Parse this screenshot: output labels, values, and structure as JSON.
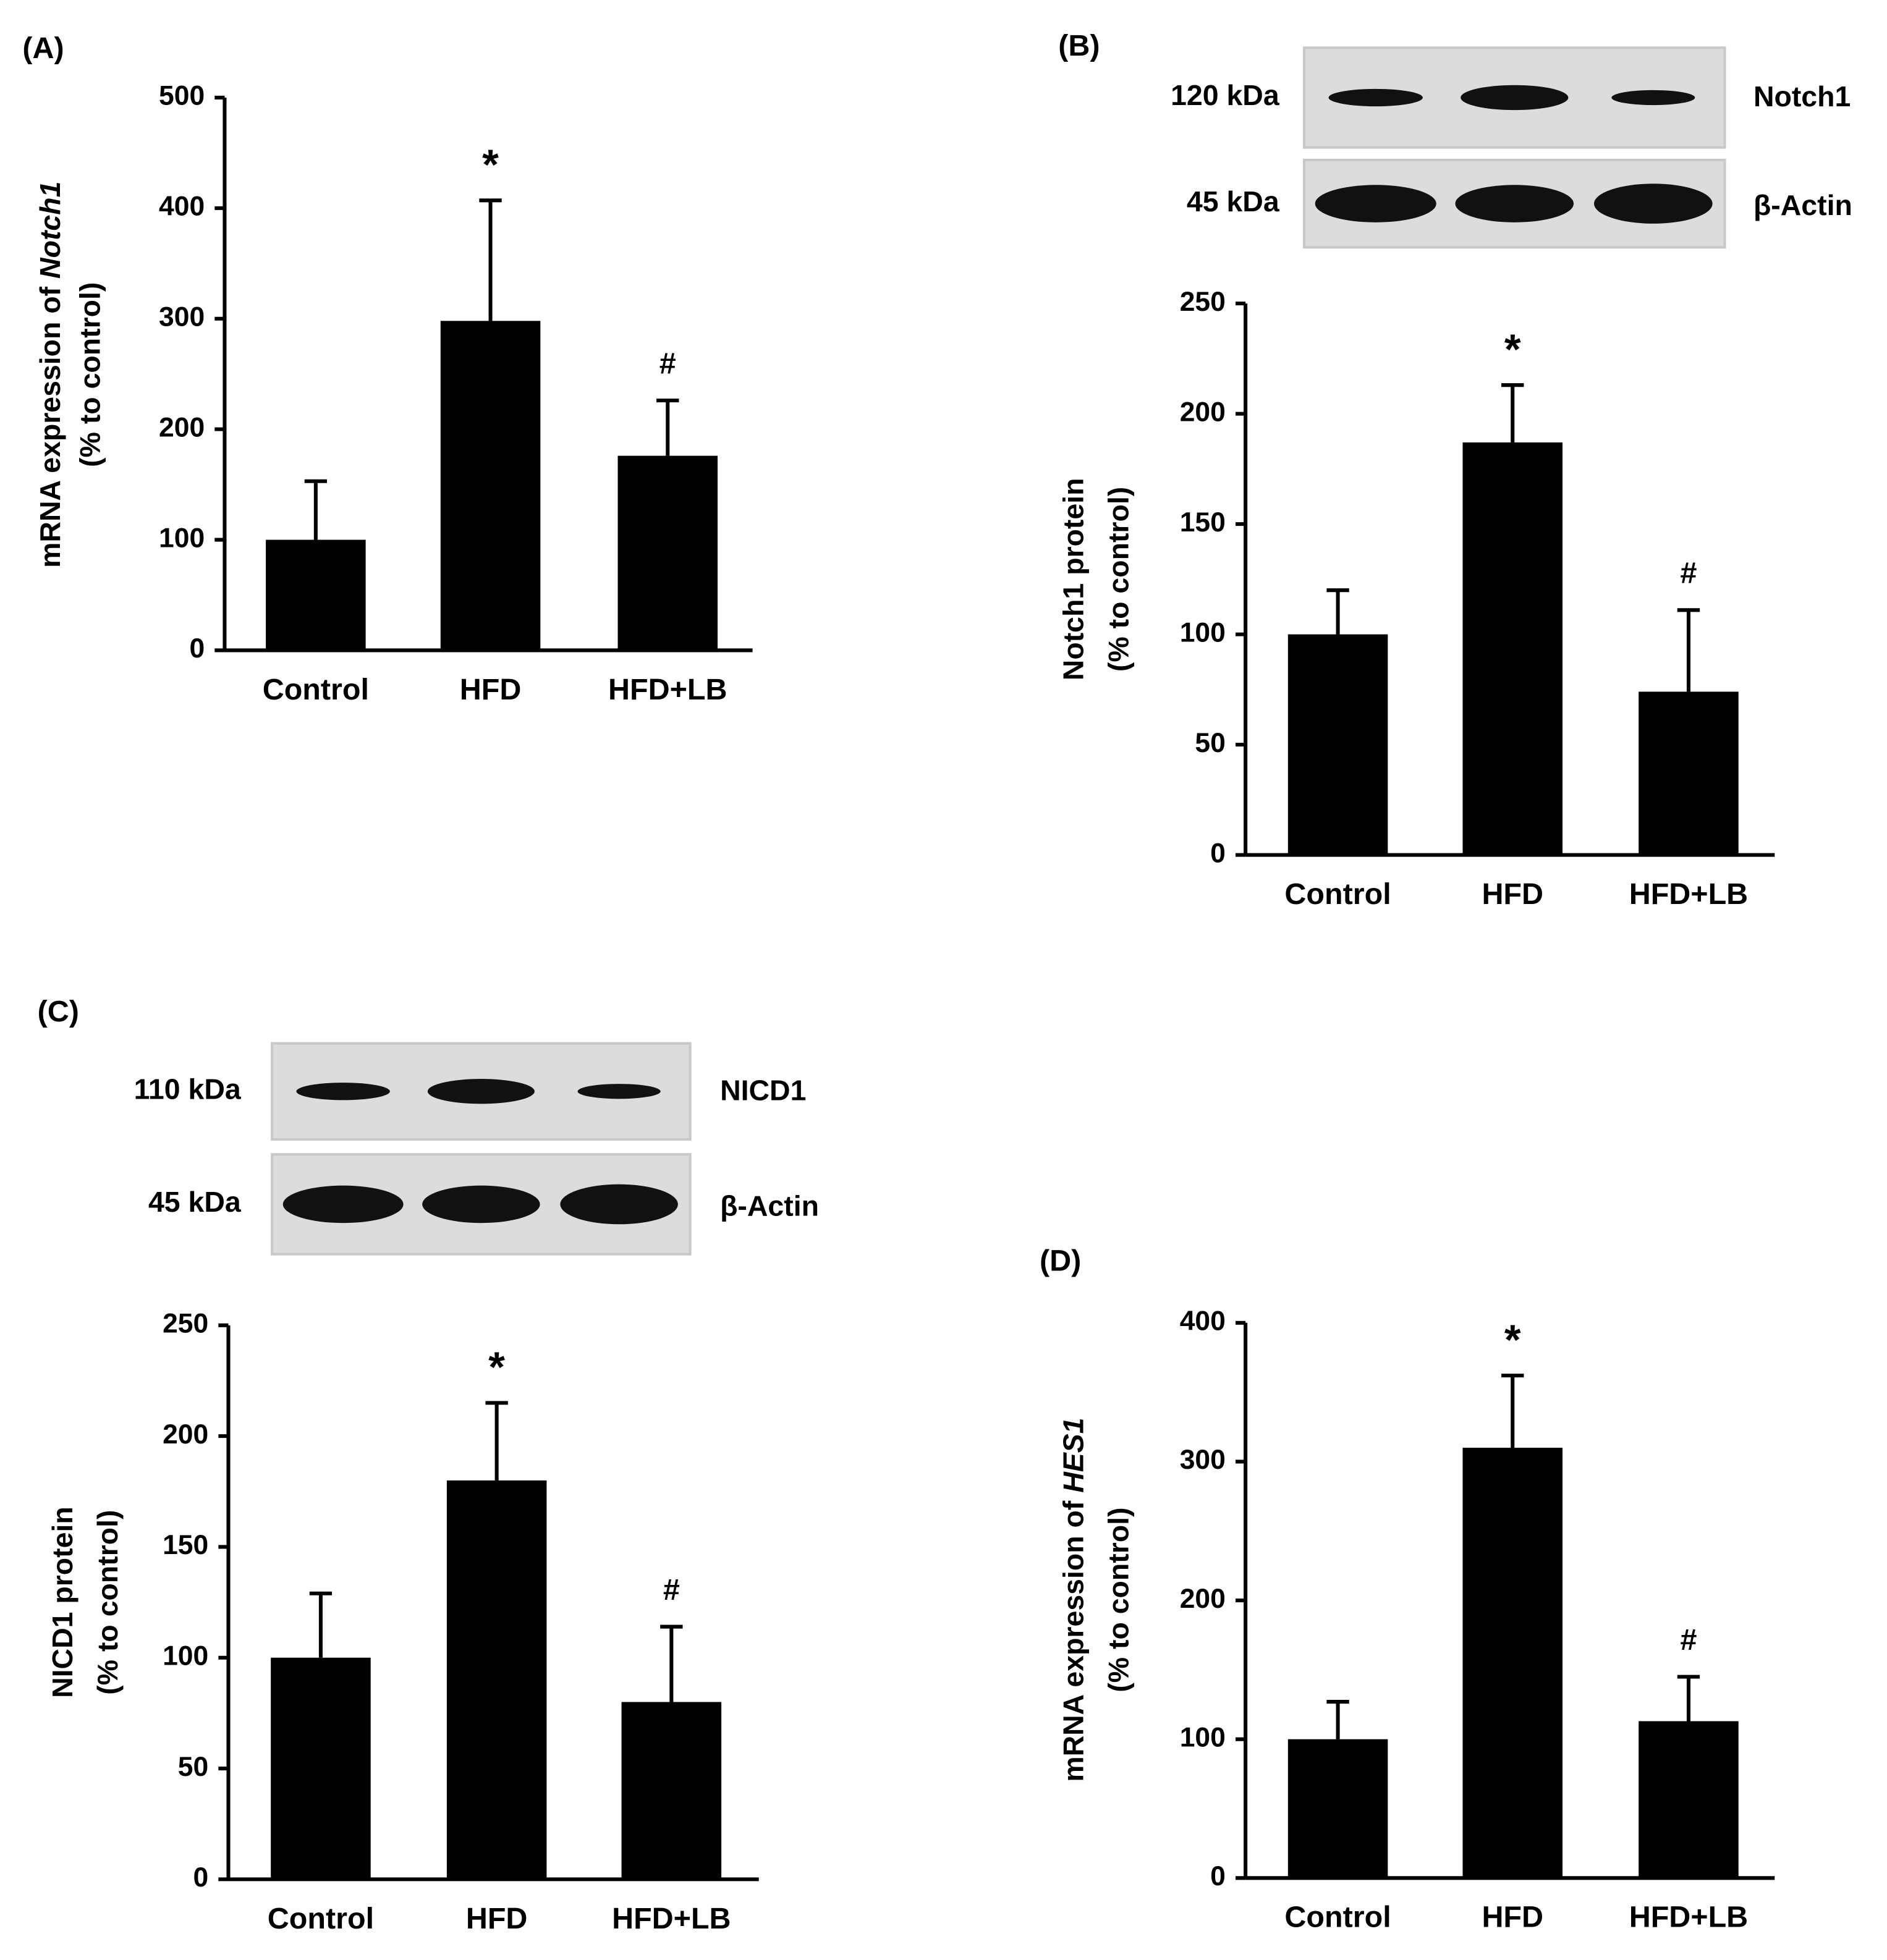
{
  "chart_data": [
    {
      "type": "bar",
      "panel": "(A)",
      "ylabel": [
        {
          "text": "mRNA expression of "
        },
        {
          "text": "Notch1",
          "italic": true
        }
      ],
      "ylabel2": "(% to control)",
      "categories": [
        "Control",
        "HFD",
        "HFD+LB"
      ],
      "values": [
        100,
        298,
        176
      ],
      "errors": [
        53,
        109,
        50
      ],
      "annotations": [
        null,
        "*",
        "#"
      ],
      "color": "#000000",
      "ylim": [
        0,
        500
      ],
      "yticks": [
        0,
        100,
        200,
        300,
        400,
        500
      ]
    },
    {
      "type": "bar",
      "panel": "(B)",
      "blot": [
        {
          "size": "120 kDa",
          "protein": "Notch1"
        },
        {
          "size": "45 kDa",
          "protein": "β-Actin"
        }
      ],
      "ylabel": [
        {
          "text": "Notch1 protein"
        }
      ],
      "ylabel2": "(% to control)",
      "categories": [
        "Control",
        "HFD",
        "HFD+LB"
      ],
      "values": [
        100,
        187,
        74
      ],
      "errors": [
        20,
        26,
        37
      ],
      "annotations": [
        null,
        "*",
        "#"
      ],
      "color": "#000000",
      "ylim": [
        0,
        250
      ],
      "yticks": [
        0,
        50,
        100,
        150,
        200,
        250
      ]
    },
    {
      "type": "bar",
      "panel": "(C)",
      "blot": [
        {
          "size": "110 kDa",
          "protein": "NICD1"
        },
        {
          "size": "45 kDa",
          "protein": "β-Actin"
        }
      ],
      "ylabel": [
        {
          "text": "NICD1 protein"
        }
      ],
      "ylabel2": "(% to control)",
      "categories": [
        "Control",
        "HFD",
        "HFD+LB"
      ],
      "values": [
        100,
        180,
        80
      ],
      "errors": [
        29,
        35,
        34
      ],
      "annotations": [
        null,
        "*",
        "#"
      ],
      "color": "#000000",
      "ylim": [
        0,
        250
      ],
      "yticks": [
        0,
        50,
        100,
        150,
        200,
        250
      ]
    },
    {
      "type": "bar",
      "panel": "(D)",
      "ylabel": [
        {
          "text": "mRNA expression of "
        },
        {
          "text": "HES1",
          "italic": true
        }
      ],
      "ylabel2": "(% to control)",
      "categories": [
        "Control",
        "HFD",
        "HFD+LB"
      ],
      "values": [
        100,
        310,
        113
      ],
      "errors": [
        27,
        52,
        32
      ],
      "annotations": [
        null,
        "*",
        "#"
      ],
      "color": "#000000",
      "ylim": [
        0,
        400
      ],
      "yticks": [
        0,
        100,
        200,
        300,
        400
      ]
    }
  ]
}
